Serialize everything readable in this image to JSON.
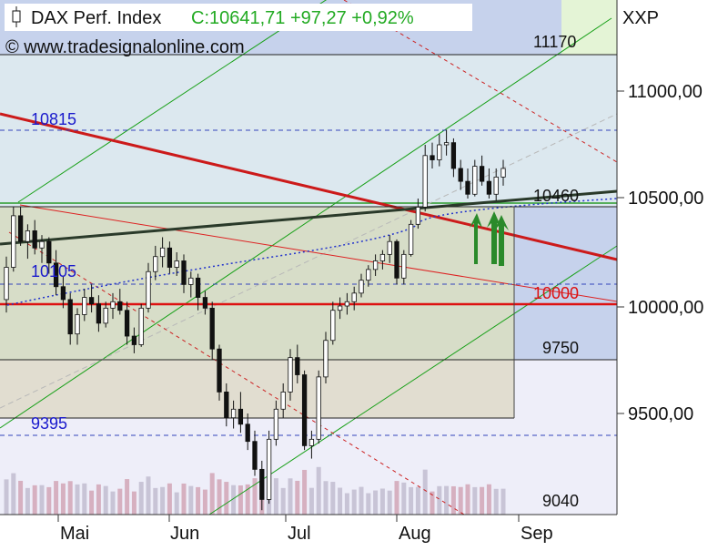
{
  "header": {
    "title": "DAX Perf. Index",
    "quote": "C:10641,71 +97,27 +0,92%",
    "watermark": "© www.tradesignalonline.com",
    "symbol": "XXP"
  },
  "chart_data": {
    "type": "candlestick",
    "x_ticks": [
      "Mai",
      "Jun",
      "Jul",
      "Aug",
      "Sep"
    ],
    "y_ticks": [
      "11000,00",
      "10500,00",
      "10000,00",
      "9500,00"
    ],
    "ylim": [
      9050,
      11400
    ],
    "grid": false,
    "level_labels": [
      "11170",
      "10815",
      "10460",
      "10105",
      "10000",
      "9750",
      "9395",
      "9040"
    ],
    "candles": [
      [
        10030,
        10230,
        9970,
        10180
      ],
      [
        10180,
        10460,
        10160,
        10420
      ],
      [
        10420,
        10460,
        10280,
        10300
      ],
      [
        10300,
        10380,
        10220,
        10350
      ],
      [
        10350,
        10400,
        10240,
        10270
      ],
      [
        10270,
        10330,
        10200,
        10300
      ],
      [
        10300,
        10320,
        10150,
        10200
      ],
      [
        10200,
        10260,
        10050,
        10090
      ],
      [
        10090,
        10140,
        9990,
        10030
      ],
      [
        10030,
        10060,
        9820,
        9870
      ],
      [
        9870,
        9990,
        9820,
        9960
      ],
      [
        9960,
        10080,
        9930,
        10040
      ],
      [
        10040,
        10100,
        9970,
        10010
      ],
      [
        10010,
        10050,
        9880,
        9920
      ],
      [
        9920,
        10020,
        9900,
        9990
      ],
      [
        9990,
        10060,
        9940,
        10020
      ],
      [
        10020,
        10080,
        9960,
        9980
      ],
      [
        9980,
        10020,
        9820,
        9860
      ],
      [
        9860,
        9900,
        9780,
        9820
      ],
      [
        9820,
        10010,
        9810,
        9990
      ],
      [
        9990,
        10200,
        9970,
        10160
      ],
      [
        10160,
        10280,
        10120,
        10230
      ],
      [
        10230,
        10320,
        10180,
        10270
      ],
      [
        10270,
        10300,
        10150,
        10180
      ],
      [
        10180,
        10250,
        10140,
        10210
      ],
      [
        10210,
        10240,
        10060,
        10100
      ],
      [
        10100,
        10160,
        10040,
        10130
      ],
      [
        10130,
        10150,
        9980,
        10040
      ],
      [
        10040,
        10070,
        9960,
        9990
      ],
      [
        9990,
        10020,
        9750,
        9800
      ],
      [
        9800,
        9820,
        9560,
        9600
      ],
      [
        9600,
        9640,
        9440,
        9480
      ],
      [
        9480,
        9560,
        9430,
        9520
      ],
      [
        9520,
        9600,
        9410,
        9450
      ],
      [
        9450,
        9500,
        9330,
        9370
      ],
      [
        9370,
        9420,
        9210,
        9240
      ],
      [
        9240,
        9280,
        9050,
        9100
      ],
      [
        9100,
        9420,
        9080,
        9380
      ],
      [
        9380,
        9560,
        9350,
        9520
      ],
      [
        9520,
        9640,
        9480,
        9600
      ],
      [
        9600,
        9800,
        9560,
        9760
      ],
      [
        9760,
        9820,
        9640,
        9680
      ],
      [
        9680,
        9700,
        9330,
        9350
      ],
      [
        9350,
        9420,
        9290,
        9380
      ],
      [
        9380,
        9700,
        9360,
        9670
      ],
      [
        9670,
        9880,
        9640,
        9840
      ],
      [
        9840,
        10020,
        9820,
        9980
      ],
      [
        9980,
        10040,
        9940,
        10000
      ],
      [
        10000,
        10060,
        9960,
        10020
      ],
      [
        10020,
        10090,
        9980,
        10060
      ],
      [
        10060,
        10150,
        10040,
        10120
      ],
      [
        10120,
        10190,
        10090,
        10170
      ],
      [
        10170,
        10240,
        10140,
        10210
      ],
      [
        10210,
        10260,
        10170,
        10240
      ],
      [
        10240,
        10330,
        10200,
        10300
      ],
      [
        10300,
        10310,
        10100,
        10130
      ],
      [
        10130,
        10260,
        10100,
        10240
      ],
      [
        10240,
        10400,
        10230,
        10380
      ],
      [
        10380,
        10500,
        10360,
        10460
      ],
      [
        10460,
        10750,
        10440,
        10700
      ],
      [
        10700,
        10760,
        10640,
        10680
      ],
      [
        10680,
        10800,
        10650,
        10750
      ],
      [
        10750,
        10820,
        10700,
        10760
      ],
      [
        10760,
        10780,
        10600,
        10640
      ],
      [
        10640,
        10680,
        10540,
        10580
      ],
      [
        10580,
        10640,
        10500,
        10520
      ],
      [
        10520,
        10680,
        10510,
        10650
      ],
      [
        10650,
        10700,
        10560,
        10580
      ],
      [
        10580,
        10640,
        10500,
        10520
      ],
      [
        10520,
        10640,
        10490,
        10600
      ],
      [
        10600,
        10680,
        10560,
        10640
      ]
    ]
  }
}
